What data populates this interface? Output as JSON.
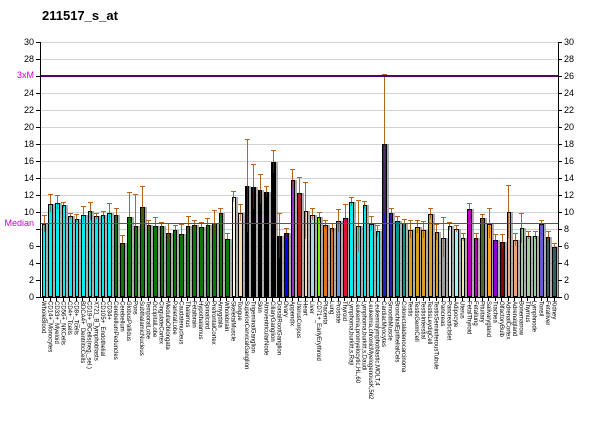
{
  "title": "211517_s_at",
  "axis": {
    "ylim": [
      0,
      30
    ],
    "left_tick_labels": [
      "30",
      "28",
      "3xM",
      "24",
      "22",
      "20",
      "18",
      "16",
      "14",
      "12",
      "10",
      "Median",
      "6",
      "4",
      "2",
      "0"
    ],
    "right_tick_labels": [
      "30",
      "28",
      "26",
      "24",
      "22",
      "20",
      "18",
      "16",
      "14",
      "12",
      "10",
      "8",
      "6",
      "4",
      "2",
      "0"
    ],
    "median_label": "Median",
    "threexm_label": "3xM",
    "median_value": 8.7,
    "threexm_value": 26.1,
    "accent_magenta": "#cc00cc",
    "threexm_line_color": "#550066",
    "errorbar_color": "#b5651d"
  },
  "chart_data": {
    "type": "bar",
    "title": "211517_s_at",
    "xlabel": "",
    "ylabel": "",
    "ylim": [
      0,
      30
    ],
    "grid": true,
    "legend": "none",
    "median_line": 8.7,
    "threexm_line": 26.1,
    "categories": [
      "WholeBlood",
      "CD14+_Monocytes",
      "CD33+_Myeloid",
      "CD56+_NKCells",
      "CD4+_Tcells",
      "CD8+_Tcells",
      "BDCA4+_DentriticCells",
      "CD19+_BCells(neg._sel.)",
      "X721_B_lymphoblasts",
      "CD105+_Endothelial",
      "CD34+",
      "CerebellumPeduncles",
      "Cerebellum",
      "GlobusPallidus",
      "Pons",
      "SubthalamicNucleus",
      "TemporalLobe",
      "OccipitalLobe",
      "CingulateCortex",
      "MedullaOblongata",
      "ParietalLobe",
      "Caudatenucleus",
      "Thalamus",
      "Fetalbrain",
      "Hypothalamus",
      "Spinalcord",
      "PrefrontalCortex",
      "Amygdala",
      "Wholebrain",
      "SkeletalMuscle",
      "Tongue",
      "SuperiorCervicalGanglion",
      "TrigeminalGanglion",
      "Skin",
      "AtrioventricularNode",
      "CiliaryGanglion",
      "DorsalRootGanglion",
      "Ovary",
      "Appendix",
      "UterusCorpus",
      "Heart",
      "Liver",
      "CD71+_EarlyErythroid",
      "Placenta",
      "Lung",
      "Prostate",
      "Thyroid",
      "Lymphoma,burkitt,s,Raji",
      "Leukemia,promyelocytic,HL,60",
      "Lymphoma,burkitt,s,Daudi",
      "Leukemia,chronicMyelogenousK,562",
      "Leukemialymphoblastic,MOLT,4",
      "CardiacMyocytes",
      "SmoothMuscle",
      "BronchialEpithelialCels",
      "Colorectaladenocarcinoma",
      "Testis",
      "TestisGermCell",
      "TestisInterstial",
      "TestisLeydigCell",
      "TestisSeminiferousTubule",
      "Pancreas",
      "PancreaticIslet",
      "Adipocyte",
      "Uterus",
      "FetalThyroid",
      "Fetallung",
      "Pituitary",
      "Salivarygland",
      "Trachea",
      "OlfactoryBulb",
      "AdrenalCortex",
      "Adrenalgland",
      "Bonemarrow",
      "Thymus",
      "Lymphnode",
      "Tonsil",
      "Fetalliver",
      "Kidney"
    ],
    "values": [
      8.6,
      11.0,
      11.1,
      10.8,
      9.5,
      9.2,
      9.7,
      10.1,
      9.5,
      9.6,
      9.9,
      9.6,
      6.4,
      9.4,
      8.4,
      10.6,
      8.5,
      8.3,
      8.3,
      7.5,
      7.9,
      7.4,
      8.4,
      8.5,
      8.2,
      8.5,
      8.7,
      9.9,
      6.8,
      11.8,
      9.9,
      13.1,
      12.9,
      12.6,
      12.4,
      15.9,
      7.2,
      7.5,
      13.8,
      12.2,
      10.1,
      9.7,
      9.4,
      8.5,
      8.1,
      8.9,
      9.3,
      11.2,
      8.3,
      10.8,
      8.6,
      7.8,
      18.0,
      9.9,
      8.9,
      8.7,
      7.9,
      8.2,
      7.9,
      9.8,
      7.6,
      7.0,
      8.3,
      8.0,
      7.0,
      10.4,
      7.0,
      9.3,
      8.6,
      6.7,
      6.5,
      10.0,
      6.7,
      8.1,
      7.2,
      7.2,
      8.6,
      7.1,
      5.9
    ],
    "errors_top": [
      9.5,
      12.0,
      11.9,
      11.1,
      9.8,
      9.6,
      10.6,
      11.1,
      9.8,
      10.0,
      10.9,
      10.4,
      7.2,
      12.2,
      12.0,
      13.0,
      9.0,
      9.3,
      8.7,
      8.6,
      8.3,
      8.5,
      9.4,
      9.0,
      8.7,
      9.2,
      10.1,
      10.3,
      7.4,
      12.4,
      10.8,
      18.5,
      15.5,
      14.3,
      13.0,
      17.2,
      9.8,
      8.0,
      14.9,
      14.0,
      13.4,
      10.3,
      9.9,
      9.0,
      8.6,
      10.2,
      10.8,
      11.7,
      11.3,
      11.2,
      9.4,
      8.4,
      26.1,
      10.4,
      9.4,
      9.1,
      8.9,
      8.9,
      8.8,
      10.4,
      8.5,
      9.3,
      8.7,
      8.4,
      7.4,
      10.9,
      7.4,
      9.6,
      10.3,
      7.3,
      7.3,
      13.1,
      7.4,
      9.8,
      7.6,
      7.6,
      8.9,
      7.7,
      6.2
    ],
    "bar_colors": [
      "#00EEEE",
      "#00EEEE",
      "#00EEEE",
      "#00EEEE",
      "#00EEEE",
      "#00EEEE",
      "#00EEEE",
      "#00EEEE",
      "#00EEEE",
      "#00EEEE",
      "#00EEEE",
      "#0A780A",
      "#0A780A",
      "#0A780A",
      "#0A780A",
      "#0A780A",
      "#0A780A",
      "#0A780A",
      "#0A780A",
      "#0A780A",
      "#0A780A",
      "#0A780A",
      "#0A780A",
      "#0A780A",
      "#0A780A",
      "#0A780A",
      "#0A780A",
      "#0A780A",
      "#0A780A",
      "#FCF3DF",
      "#F2DEB0",
      "#000000",
      "#000000",
      "#000000",
      "#000000",
      "#000000",
      "#000000",
      "#0000EE",
      "#9932CC",
      "#B22222",
      "#F2DEB0",
      "#ADD8E6",
      "#76EE00",
      "#E2711D",
      "#E2711D",
      "#6495ED",
      "#DC143C",
      "#00EEEE",
      "#00EEEE",
      "#00EEEE",
      "#00EEEE",
      "#00EEEE",
      "#2020C0",
      "#2020C0",
      "#009990",
      "#009990",
      "#D9A01E",
      "#D9A01E",
      "#D9A01E",
      "#D9A01E",
      "#D9A01E",
      "#9E9E9E",
      "#E5E5E5",
      "#AFEEEE",
      "#EEE8AA",
      "#C000C0",
      "#C000C0",
      "#4F6B2A",
      "#FBA51B",
      "#9400D3",
      "#8B0000",
      "#EFA080",
      "#EFA080",
      "#9CCB9C",
      "#9CCB9C",
      "#9CCB9C",
      "#6A5ACD",
      "#375E5E",
      "#375E5E"
    ]
  }
}
